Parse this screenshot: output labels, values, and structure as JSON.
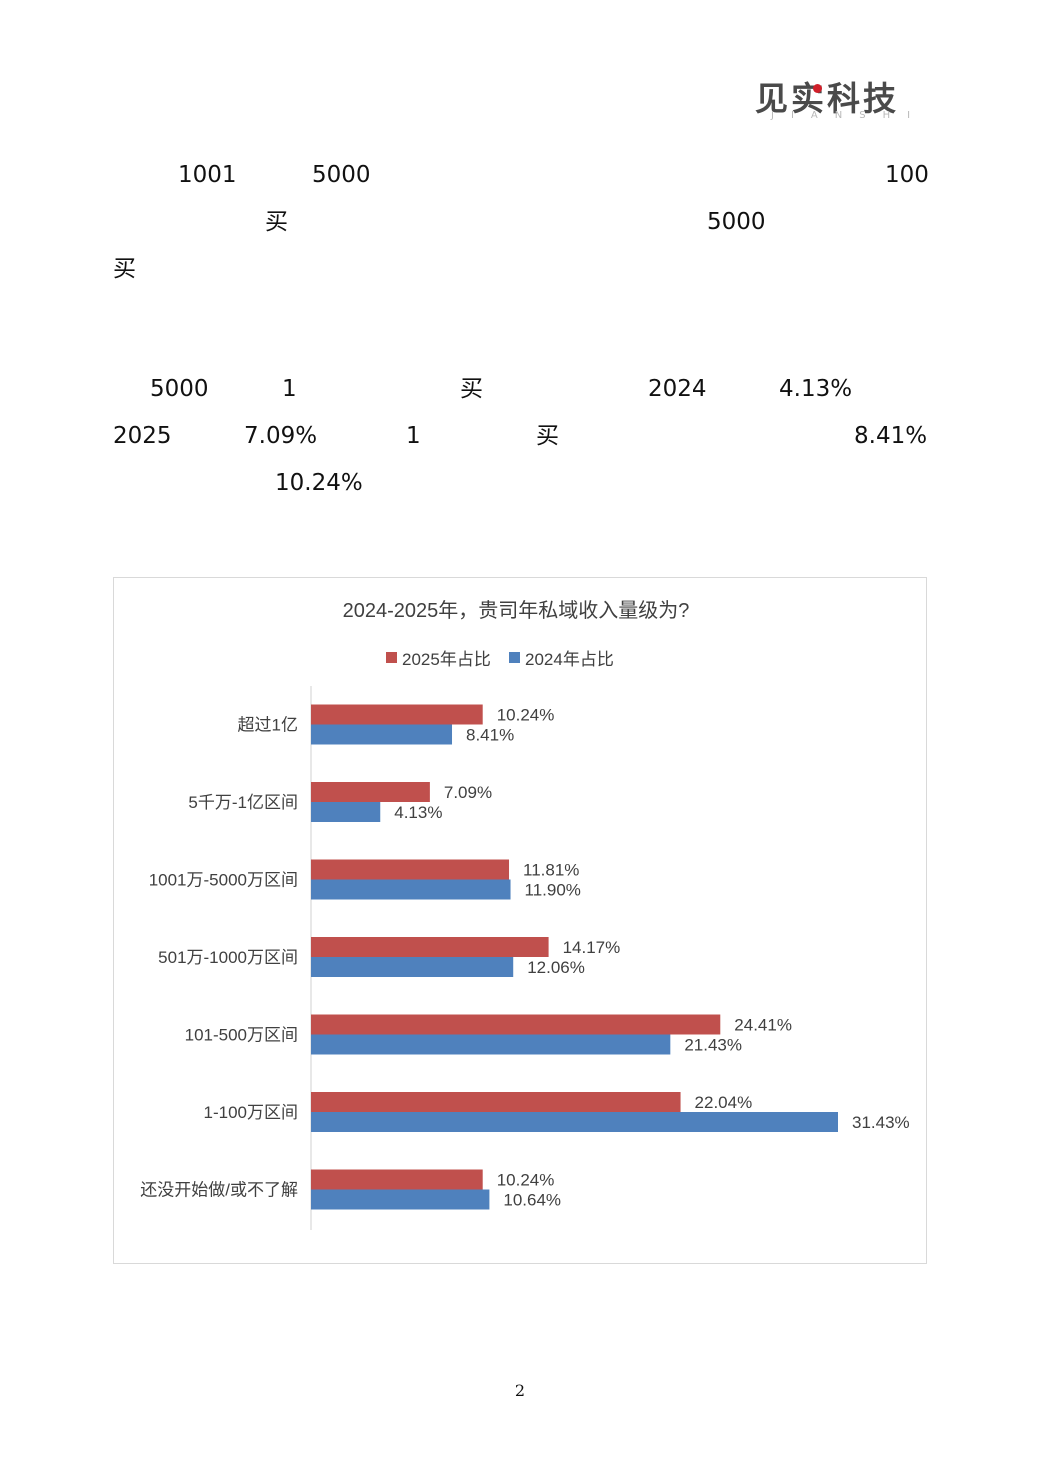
{
  "logo": {
    "main": "见实科技",
    "sub": "JIANSHI"
  },
  "fragments": {
    "p1": [
      "1001",
      "5000",
      "100",
      "买",
      "5000",
      "买"
    ],
    "p2": [
      "5000",
      "1",
      "买",
      "2024",
      "4.13%",
      "2025",
      "7.09%",
      "1",
      "买",
      "8.41%",
      "10.24%"
    ]
  },
  "chart_data": {
    "type": "bar",
    "orientation": "horizontal",
    "title": "2024-2025年，贵司年私域收入量级为?",
    "legend_position": "top",
    "categories": [
      "超过1亿",
      "5千万-1亿区间",
      "1001万-5000万区间",
      "501万-1000万区间",
      "101-500万区间",
      "1-100万区间",
      "还没开始做/或不了解"
    ],
    "series": [
      {
        "name": "2025年占比",
        "color": "#c0504d",
        "values": [
          10.24,
          7.09,
          11.81,
          14.17,
          24.41,
          22.04,
          10.24
        ],
        "labels": [
          "10.24%",
          "7.09%",
          "11.81%",
          "14.17%",
          "24.41%",
          "22.04%",
          "10.24%"
        ]
      },
      {
        "name": "2024年占比",
        "color": "#4f81bd",
        "values": [
          8.41,
          4.13,
          11.9,
          12.06,
          21.43,
          31.43,
          10.64
        ],
        "labels": [
          "8.41%",
          "4.13%",
          "11.90%",
          "12.06%",
          "21.43%",
          "31.43%",
          "10.64%"
        ]
      }
    ],
    "xlim": [
      0,
      35
    ],
    "grid": false
  },
  "page_number": "2"
}
